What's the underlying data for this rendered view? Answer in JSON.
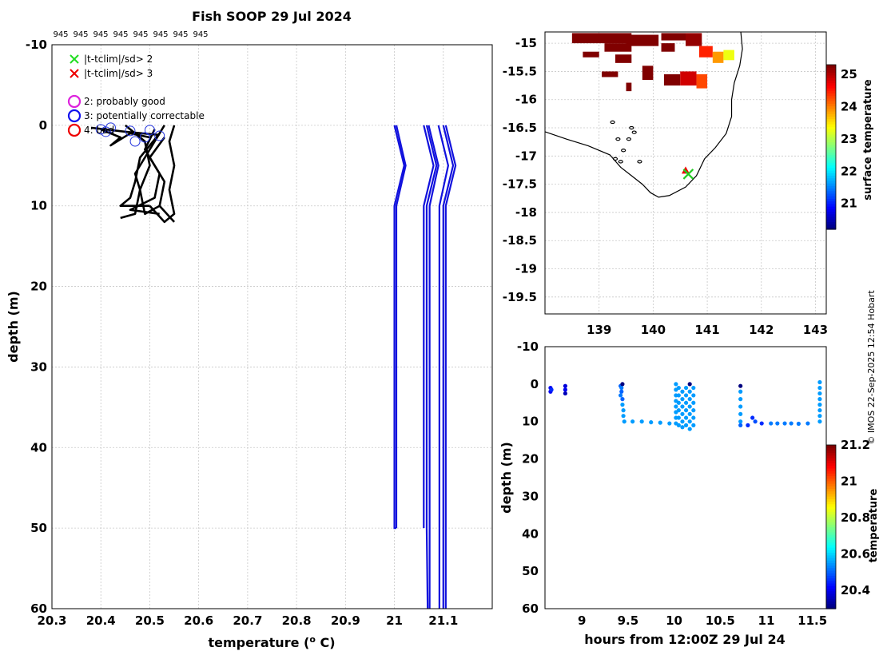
{
  "chart_data": [
    {
      "type": "line",
      "title": "Fish SOOP 29 Jul 2024",
      "top_labels": [
        "945",
        "945",
        "945",
        "945",
        "945",
        "945",
        "945",
        "945"
      ],
      "xlabel": "temperature (",
      "xlabel_sup": "o",
      "xlabel_unit": " C)",
      "ylabel": "depth (m)",
      "xlim": [
        20.3,
        21.2
      ],
      "ylim": [
        -10,
        60
      ],
      "xticks": [
        20.3,
        20.4,
        20.5,
        20.6,
        20.7,
        20.8,
        20.9,
        21,
        21.1
      ],
      "xtick_labels": [
        "20.3",
        "20.4",
        "20.5",
        "20.6",
        "20.7",
        "20.8",
        "20.9",
        "21",
        "21.1"
      ],
      "yticks": [
        -10,
        0,
        10,
        20,
        30,
        40,
        50,
        60
      ],
      "ytick_labels": [
        "-10",
        "0",
        "10",
        "20",
        "30",
        "40",
        "50",
        "60"
      ],
      "legend": [
        {
          "marker": "x",
          "color": "#22dd22",
          "label": "|t-tclim|/sd> 2"
        },
        {
          "marker": "x",
          "color": "#ee0000",
          "label": "|t-tclim|/sd> 3"
        },
        {
          "marker": "o",
          "color": "#dd22dd",
          "label": "2: probably good"
        },
        {
          "marker": "o",
          "color": "#1111ee",
          "label": "3: potentially correctable"
        },
        {
          "marker": "o",
          "color": "#ee0000",
          "label": "4: bad"
        }
      ],
      "profiles": [
        [
          [
            20.55,
            0
          ],
          [
            20.54,
            2
          ],
          [
            20.55,
            5
          ],
          [
            20.54,
            8
          ],
          [
            20.55,
            11
          ],
          [
            20.53,
            12
          ],
          [
            20.5,
            10
          ]
        ],
        [
          [
            20.53,
            0
          ],
          [
            20.5,
            3
          ],
          [
            20.47,
            6
          ],
          [
            20.48,
            8
          ],
          [
            20.49,
            11
          ],
          [
            20.52,
            10
          ]
        ],
        [
          [
            20.52,
            1
          ],
          [
            20.48,
            4
          ],
          [
            20.47,
            7
          ],
          [
            20.46,
            9
          ],
          [
            20.44,
            10
          ],
          [
            20.5,
            10
          ]
        ],
        [
          [
            20.51,
            0.5
          ],
          [
            20.49,
            3
          ],
          [
            20.52,
            6
          ],
          [
            20.51,
            9
          ],
          [
            20.46,
            10.5
          ],
          [
            20.52,
            11
          ]
        ],
        [
          [
            20.53,
            1.5
          ],
          [
            20.5,
            4
          ],
          [
            20.53,
            7
          ],
          [
            20.52,
            10
          ],
          [
            20.55,
            12
          ]
        ],
        [
          [
            20.45,
            0
          ],
          [
            20.49,
            2
          ],
          [
            20.5,
            5
          ],
          [
            20.48,
            8
          ],
          [
            20.47,
            11
          ],
          [
            20.44,
            11.5
          ]
        ],
        [
          [
            20.4,
            0.5
          ],
          [
            20.44,
            1.5
          ],
          [
            20.42,
            2.5
          ],
          [
            20.46,
            1
          ],
          [
            20.5,
            1.5
          ]
        ],
        [
          [
            20.38,
            0.3
          ],
          [
            20.45,
            0.8
          ],
          [
            20.52,
            1.2
          ]
        ]
      ],
      "flag3_points": [
        [
          20.4,
          0.5
        ],
        [
          20.41,
          0.8
        ],
        [
          20.46,
          0.7
        ],
        [
          20.5,
          0.6
        ],
        [
          20.49,
          1.5
        ],
        [
          20.47,
          2
        ],
        [
          20.52,
          1.3
        ],
        [
          20.42,
          0.3
        ]
      ],
      "clim_profiles": [
        {
          "x": [
            21,
            21.02,
            21,
            21,
            21.004
          ],
          "y": [
            0,
            5,
            10,
            50,
            50
          ]
        },
        {
          "x": [
            21.004,
            21.023,
            21.004,
            21.004
          ],
          "y": [
            0,
            5,
            10,
            50
          ]
        },
        {
          "x": [
            21.06,
            21.08,
            21.06,
            21.06
          ],
          "y": [
            0,
            5,
            10,
            50
          ]
        },
        {
          "x": [
            21.066,
            21.086,
            21.066,
            21.066,
            21.068
          ],
          "y": [
            0,
            5,
            10,
            50,
            60
          ]
        },
        {
          "x": [
            21.07,
            21.09,
            21.072,
            21.072
          ],
          "y": [
            0,
            5,
            10,
            60
          ]
        },
        {
          "x": [
            21.09,
            21.11,
            21.092,
            21.092
          ],
          "y": [
            0,
            5,
            10,
            60
          ]
        },
        {
          "x": [
            21.1,
            21.12,
            21.1,
            21.1
          ],
          "y": [
            0,
            5,
            10,
            60
          ]
        },
        {
          "x": [
            21.105,
            21.125,
            21.105,
            21.105
          ],
          "y": [
            0,
            5,
            10,
            60
          ]
        }
      ]
    },
    {
      "type": "heatmap",
      "xlim": [
        138,
        143.2
      ],
      "ylim": [
        -19.8,
        -14.8
      ],
      "xticks": [
        139,
        140,
        141,
        142,
        143
      ],
      "xtick_labels": [
        "139",
        "140",
        "141",
        "142",
        "143"
      ],
      "yticks": [
        -15,
        -15.5,
        -16,
        -16.5,
        -17,
        -17.5,
        -18,
        -18.5,
        -19,
        -19.5
      ],
      "ytick_labels": [
        "-15",
        "-15.5",
        "-16",
        "-16.5",
        "-17",
        "-17.5",
        "-18",
        "-18.5",
        "-19",
        "-19.5"
      ],
      "colorbar_label": "surface temperature",
      "colorbar_range": [
        20.2,
        25.3
      ],
      "colorbar_ticks": [
        21,
        22,
        23,
        24,
        25
      ],
      "colorbar_tick_labels": [
        "21",
        "22",
        "23",
        "24",
        "25"
      ],
      "coastline": [
        [
          138,
          -16.57
        ],
        [
          138.4,
          -16.7
        ],
        [
          138.8,
          -16.82
        ],
        [
          139.2,
          -16.98
        ],
        [
          139.4,
          -17.2
        ],
        [
          139.6,
          -17.35
        ],
        [
          139.8,
          -17.5
        ],
        [
          139.95,
          -17.65
        ],
        [
          140.1,
          -17.73
        ],
        [
          140.3,
          -17.7
        ],
        [
          140.6,
          -17.55
        ],
        [
          140.8,
          -17.35
        ],
        [
          140.95,
          -17.05
        ],
        [
          141.15,
          -16.85
        ],
        [
          141.35,
          -16.6
        ],
        [
          141.45,
          -16.3
        ],
        [
          141.45,
          -16
        ],
        [
          141.5,
          -15.7
        ],
        [
          141.6,
          -15.4
        ],
        [
          141.65,
          -15.1
        ],
        [
          141.62,
          -14.8
        ]
      ],
      "sst_patches": [
        {
          "lon": [
            138.5,
            139.6
          ],
          "lat": [
            -15.0,
            -14.82
          ],
          "value": 25.4
        },
        {
          "lon": [
            139.1,
            139.6
          ],
          "lat": [
            -15.15,
            -15.0
          ],
          "value": 25.4
        },
        {
          "lon": [
            139.5,
            140.1
          ],
          "lat": [
            -15.05,
            -14.85
          ],
          "value": 25.4
        },
        {
          "lon": [
            140.15,
            140.4
          ],
          "lat": [
            -15.15,
            -15.0
          ],
          "value": 25.4
        },
        {
          "lon": [
            140.15,
            140.6
          ],
          "lat": [
            -14.95,
            -14.82
          ],
          "value": 25.4
        },
        {
          "lon": [
            140.6,
            140.9
          ],
          "lat": [
            -15.05,
            -14.82
          ],
          "value": 25.2
        },
        {
          "lon": [
            140.85,
            141.1
          ],
          "lat": [
            -15.25,
            -15.05
          ],
          "value": 24.5
        },
        {
          "lon": [
            141.1,
            141.3
          ],
          "lat": [
            -15.35,
            -15.15
          ],
          "value": 23.9
        },
        {
          "lon": [
            141.3,
            141.5
          ],
          "lat": [
            -15.3,
            -15.12
          ],
          "value": 23.3
        },
        {
          "lon": [
            139.3,
            139.6
          ],
          "lat": [
            -15.35,
            -15.2
          ],
          "value": 25.3
        },
        {
          "lon": [
            138.7,
            139.0
          ],
          "lat": [
            -15.25,
            -15.15
          ],
          "value": 25.4
        },
        {
          "lon": [
            139.8,
            140.0
          ],
          "lat": [
            -15.65,
            -15.4
          ],
          "value": 25.4
        },
        {
          "lon": [
            140.2,
            140.5
          ],
          "lat": [
            -15.75,
            -15.55
          ],
          "value": 25.4
        },
        {
          "lon": [
            140.5,
            140.8
          ],
          "lat": [
            -15.75,
            -15.5
          ],
          "value": 24.9
        },
        {
          "lon": [
            140.8,
            141.0
          ],
          "lat": [
            -15.8,
            -15.55
          ],
          "value": 24.3
        },
        {
          "lon": [
            139.05,
            139.35
          ],
          "lat": [
            -15.6,
            -15.5
          ],
          "value": 25.4
        },
        {
          "lon": [
            139.5,
            139.6
          ],
          "lat": [
            -15.85,
            -15.7
          ],
          "value": 25.3
        }
      ],
      "islands": [
        {
          "lon": 139.6,
          "lat": -16.5
        },
        {
          "lon": 139.65,
          "lat": -16.58
        },
        {
          "lon": 139.55,
          "lat": -16.7
        },
        {
          "lon": 139.45,
          "lat": -16.9
        },
        {
          "lon": 139.3,
          "lat": -17.05
        },
        {
          "lon": 139.75,
          "lat": -17.1
        },
        {
          "lon": 139.35,
          "lat": -16.7
        },
        {
          "lon": 139.25,
          "lat": -16.4
        },
        {
          "lon": 139.4,
          "lat": -17.1
        }
      ],
      "station_green": {
        "lon": 140.65,
        "lat": -17.32
      },
      "station_red": {
        "lon": 140.6,
        "lat": -17.27
      }
    },
    {
      "type": "scatter",
      "xlabel": "hours from 12:00Z 29 Jul 24",
      "ylabel": "depth (m)",
      "xlim": [
        8.6,
        11.65
      ],
      "ylim": [
        -10,
        60
      ],
      "xticks": [
        9,
        9.5,
        10,
        10.5,
        11,
        11.5
      ],
      "xtick_labels": [
        "9",
        "9.5",
        "10",
        "10.5",
        "11",
        "11.5"
      ],
      "yticks": [
        -10,
        0,
        10,
        20,
        30,
        40,
        50,
        60
      ],
      "ytick_labels": [
        "-10",
        "0",
        "10",
        "20",
        "30",
        "40",
        "50",
        "60"
      ],
      "colorbar_label": "temperature",
      "colorbar_range": [
        20.3,
        21.2
      ],
      "colorbar_ticks": [
        20.4,
        20.6,
        20.8,
        21,
        21.2
      ],
      "colorbar_tick_labels": [
        "20.4",
        "20.6",
        "20.8",
        "21",
        "21.2"
      ],
      "points": [
        [
          8.66,
          1,
          20.4
        ],
        [
          8.66,
          2,
          20.4
        ],
        [
          8.67,
          1.5,
          20.45
        ],
        [
          8.82,
          0.5,
          20.38
        ],
        [
          8.82,
          1.5,
          20.4
        ],
        [
          8.82,
          2.5,
          20.35
        ],
        [
          9.42,
          0.5,
          20.5
        ],
        [
          9.44,
          0,
          20.3
        ],
        [
          9.43,
          1,
          20.52
        ],
        [
          9.43,
          2,
          20.5
        ],
        [
          9.42,
          3,
          20.52
        ],
        [
          9.44,
          4,
          20.5
        ],
        [
          9.44,
          5.5,
          20.55
        ],
        [
          9.45,
          7,
          20.55
        ],
        [
          9.45,
          8.5,
          20.55
        ],
        [
          9.46,
          10,
          20.55
        ],
        [
          9.55,
          10,
          20.55
        ],
        [
          9.65,
          10,
          20.55
        ],
        [
          9.75,
          10.2,
          20.55
        ],
        [
          9.85,
          10.3,
          20.55
        ],
        [
          9.95,
          10.5,
          20.55
        ],
        [
          10.02,
          0,
          20.55
        ],
        [
          10.02,
          1.5,
          20.55
        ],
        [
          10.02,
          3,
          20.55
        ],
        [
          10.02,
          4.5,
          20.55
        ],
        [
          10.02,
          6,
          20.55
        ],
        [
          10.02,
          7.5,
          20.55
        ],
        [
          10.02,
          9,
          20.55
        ],
        [
          10.02,
          10.5,
          20.55
        ],
        [
          10.05,
          1,
          20.55
        ],
        [
          10.05,
          3,
          20.55
        ],
        [
          10.05,
          5,
          20.55
        ],
        [
          10.05,
          7,
          20.55
        ],
        [
          10.05,
          9,
          20.55
        ],
        [
          10.05,
          11,
          20.55
        ],
        [
          10.09,
          2,
          20.55
        ],
        [
          10.09,
          4,
          20.55
        ],
        [
          10.09,
          6,
          20.55
        ],
        [
          10.09,
          8,
          20.55
        ],
        [
          10.09,
          10,
          20.55
        ],
        [
          10.09,
          11.5,
          20.55
        ],
        [
          10.13,
          1,
          20.55
        ],
        [
          10.13,
          3,
          20.55
        ],
        [
          10.13,
          5,
          20.55
        ],
        [
          10.13,
          7,
          20.55
        ],
        [
          10.13,
          9,
          20.55
        ],
        [
          10.13,
          11,
          20.55
        ],
        [
          10.17,
          0,
          20.3
        ],
        [
          10.17,
          2,
          20.55
        ],
        [
          10.17,
          4,
          20.55
        ],
        [
          10.17,
          6,
          20.55
        ],
        [
          10.17,
          8,
          20.55
        ],
        [
          10.17,
          10,
          20.55
        ],
        [
          10.17,
          12,
          20.55
        ],
        [
          10.21,
          1,
          20.55
        ],
        [
          10.21,
          3,
          20.55
        ],
        [
          10.21,
          5,
          20.55
        ],
        [
          10.21,
          7,
          20.55
        ],
        [
          10.21,
          9,
          20.55
        ],
        [
          10.21,
          11,
          20.55
        ],
        [
          10.72,
          0.5,
          20.3
        ],
        [
          10.72,
          2,
          20.55
        ],
        [
          10.72,
          4,
          20.55
        ],
        [
          10.72,
          6,
          20.55
        ],
        [
          10.72,
          8,
          20.55
        ],
        [
          10.72,
          10,
          20.55
        ],
        [
          10.72,
          11,
          20.5
        ],
        [
          10.8,
          11,
          20.45
        ],
        [
          10.85,
          9,
          20.45
        ],
        [
          10.88,
          10,
          20.48
        ],
        [
          10.95,
          10.5,
          20.45
        ],
        [
          11.05,
          10.5,
          20.52
        ],
        [
          11.12,
          10.5,
          20.52
        ],
        [
          11.2,
          10.5,
          20.52
        ],
        [
          11.27,
          10.5,
          20.52
        ],
        [
          11.35,
          10.6,
          20.52
        ],
        [
          11.45,
          10.5,
          20.52
        ],
        [
          11.58,
          -0.5,
          20.55
        ],
        [
          11.58,
          1,
          20.55
        ],
        [
          11.58,
          2.5,
          20.55
        ],
        [
          11.58,
          4,
          20.55
        ],
        [
          11.58,
          5.5,
          20.55
        ],
        [
          11.58,
          7,
          20.55
        ],
        [
          11.58,
          8.5,
          20.55
        ],
        [
          11.58,
          10,
          20.55
        ]
      ]
    }
  ],
  "credit": "© IMOS 22-Sep-2025 12:54 Hobart"
}
